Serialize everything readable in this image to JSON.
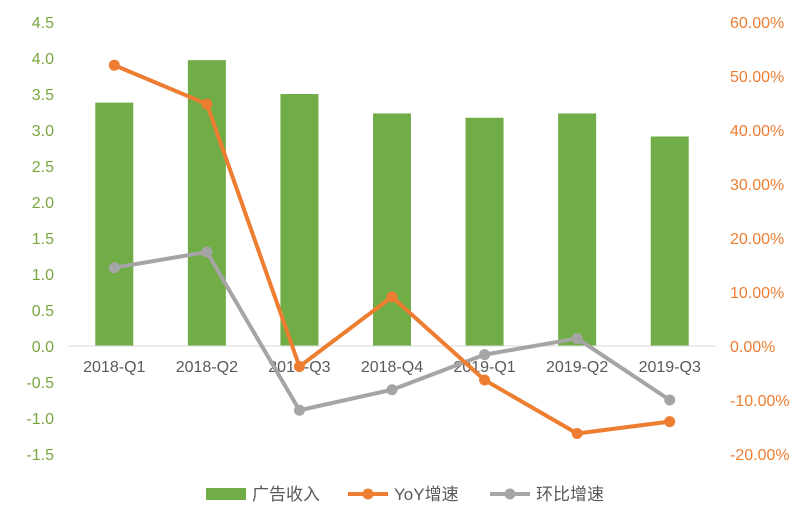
{
  "chart_data": {
    "type": "bar+line",
    "categories": [
      "2018-Q1",
      "2018-Q2",
      "2018-Q3",
      "2018-Q4",
      "2019-Q1",
      "2019-Q2",
      "2019-Q3"
    ],
    "series": [
      {
        "name": "广告收入",
        "type": "bar",
        "axis": "left",
        "color": "#70ad47",
        "values": [
          3.38,
          3.97,
          3.5,
          3.23,
          3.17,
          3.23,
          2.91
        ]
      },
      {
        "name": "YoY增速",
        "type": "line",
        "axis": "right",
        "color": "#ed7d31",
        "values": [
          52.0,
          44.8,
          -3.8,
          9.1,
          -6.3,
          -16.2,
          -14.0
        ]
      },
      {
        "name": "环比增速",
        "type": "line",
        "axis": "right",
        "color": "#a5a5a5",
        "values": [
          14.5,
          17.4,
          -11.9,
          -8.1,
          -1.6,
          1.4,
          -10.0
        ]
      }
    ],
    "y_left": {
      "range": [
        -1.5,
        4.5
      ],
      "ticks": [
        "4.5",
        "4.0",
        "3.5",
        "3.0",
        "2.5",
        "2.0",
        "1.5",
        "1.0",
        "0.5",
        "0.0",
        "-0.5",
        "-1.0",
        "-1.5"
      ]
    },
    "y_right": {
      "range": [
        -20,
        60
      ],
      "ticks": [
        "60.00%",
        "50.00%",
        "40.00%",
        "30.00%",
        "20.00%",
        "10.00%",
        "0.00%",
        "-10.00%",
        "-20.00%"
      ]
    },
    "grid": false,
    "legend_position": "bottom",
    "legend": [
      "广告收入",
      "YoY增速",
      "环比增速"
    ],
    "colors": {
      "bar": "#70ad47",
      "yoy": "#ed7d31",
      "qoq": "#a5a5a5",
      "left_axis_text": "#7aa640",
      "right_axis_text": "#ed7d31",
      "category_text": "#595959"
    }
  }
}
